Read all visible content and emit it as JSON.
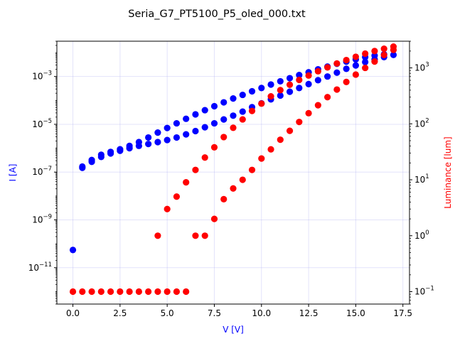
{
  "chart_data": {
    "type": "scatter",
    "title": "Seria_G7_PT5100_P5_oled_000.txt",
    "xlabel": "V [V]",
    "ylabel_left": "I [A]",
    "ylabel_right": "Luminance [lum]",
    "xlim": [
      -0.85,
      17.85
    ],
    "ylim_left": [
      3e-13,
      0.03
    ],
    "ylim_right": [
      0.06,
      3000
    ],
    "left_scale": "log",
    "right_scale": "log",
    "grid": true,
    "x_ticks": [
      {
        "v": 0.0,
        "label": "0.0"
      },
      {
        "v": 2.5,
        "label": "2.5"
      },
      {
        "v": 5.0,
        "label": "5.0"
      },
      {
        "v": 7.5,
        "label": "7.5"
      },
      {
        "v": 10.0,
        "label": "10.0"
      },
      {
        "v": 12.5,
        "label": "12.5"
      },
      {
        "v": 15.0,
        "label": "15.0"
      },
      {
        "v": 17.5,
        "label": "17.5"
      }
    ],
    "y_ticks_left": [
      {
        "v": 1e-11,
        "base": "10",
        "exp": "−11"
      },
      {
        "v": 1e-09,
        "base": "10",
        "exp": "−9"
      },
      {
        "v": 1e-07,
        "base": "10",
        "exp": "−7"
      },
      {
        "v": 1e-05,
        "base": "10",
        "exp": "−5"
      },
      {
        "v": 0.001,
        "base": "10",
        "exp": "−3"
      }
    ],
    "y_ticks_right": [
      {
        "v": 0.1,
        "base": "10",
        "exp": "−1"
      },
      {
        "v": 1,
        "base": "10",
        "exp": "0"
      },
      {
        "v": 10,
        "base": "10",
        "exp": "1"
      },
      {
        "v": 100,
        "base": "10",
        "exp": "2"
      },
      {
        "v": 1000,
        "base": "10",
        "exp": "3"
      }
    ],
    "series": [
      {
        "axis": "left",
        "color": "#0000ff",
        "points": [
          [
            0.0,
            5.5e-11
          ],
          [
            0.5,
            1.5e-07
          ],
          [
            1.0,
            2.7e-07
          ],
          [
            1.5,
            4.3e-07
          ],
          [
            2.0,
            6e-07
          ],
          [
            2.5,
            7.8e-07
          ],
          [
            3.0,
            1e-06
          ],
          [
            3.5,
            1.25e-06
          ],
          [
            4.0,
            1.5e-06
          ],
          [
            4.5,
            1.8e-06
          ],
          [
            5.0,
            2.2e-06
          ],
          [
            5.5,
            2.8e-06
          ],
          [
            6.0,
            3.8e-06
          ],
          [
            6.5,
            5.2e-06
          ],
          [
            7.0,
            7.5e-06
          ],
          [
            7.5,
            1.1e-05
          ],
          [
            8.0,
            1.6e-05
          ],
          [
            8.5,
            2.3e-05
          ],
          [
            9.0,
            3.4e-05
          ],
          [
            9.5,
            5.2e-05
          ],
          [
            10.0,
            7.5e-05
          ],
          [
            10.5,
            0.00011
          ],
          [
            11.0,
            0.00016
          ],
          [
            11.5,
            0.00023
          ],
          [
            12.0,
            0.00033
          ],
          [
            12.5,
            0.00048
          ],
          [
            13.0,
            0.0007
          ],
          [
            13.5,
            0.001
          ],
          [
            14.0,
            0.00145
          ],
          [
            14.5,
            0.0021
          ],
          [
            15.0,
            0.0029
          ],
          [
            15.5,
            0.004
          ],
          [
            16.0,
            0.0052
          ],
          [
            16.5,
            0.0065
          ],
          [
            17.0,
            0.008
          ],
          [
            16.5,
            0.0085
          ],
          [
            16.0,
            0.0075
          ],
          [
            15.5,
            0.0065
          ],
          [
            15.0,
            0.0052
          ],
          [
            14.5,
            0.0042
          ],
          [
            14.0,
            0.0034
          ],
          [
            13.5,
            0.0026
          ],
          [
            13.0,
            0.002
          ],
          [
            12.5,
            0.0015
          ],
          [
            12.0,
            0.00115
          ],
          [
            11.5,
            0.00085
          ],
          [
            11.0,
            0.00063
          ],
          [
            10.5,
            0.00046
          ],
          [
            10.0,
            0.00033
          ],
          [
            9.5,
            0.00024
          ],
          [
            9.0,
            0.00017
          ],
          [
            8.5,
            0.00012
          ],
          [
            8.0,
            8.3e-05
          ],
          [
            7.5,
            5.7e-05
          ],
          [
            7.0,
            3.9e-05
          ],
          [
            6.5,
            2.6e-05
          ],
          [
            6.0,
            1.7e-05
          ],
          [
            5.5,
            1.1e-05
          ],
          [
            5.0,
            7e-06
          ],
          [
            4.5,
            4.5e-06
          ],
          [
            4.0,
            2.8e-06
          ],
          [
            3.5,
            1.8e-06
          ],
          [
            3.0,
            1.25e-06
          ],
          [
            2.5,
            9e-07
          ],
          [
            2.0,
            7e-07
          ],
          [
            1.5,
            5.3e-07
          ],
          [
            1.0,
            3.2e-07
          ],
          [
            0.5,
            1.7e-07
          ]
        ]
      },
      {
        "axis": "right",
        "color": "#ff0000",
        "points": [
          [
            0.0,
            0.1
          ],
          [
            0.5,
            0.1
          ],
          [
            1.0,
            0.1
          ],
          [
            1.5,
            0.1
          ],
          [
            2.0,
            0.1
          ],
          [
            2.5,
            0.1
          ],
          [
            3.0,
            0.1
          ],
          [
            3.5,
            0.1
          ],
          [
            4.0,
            0.1
          ],
          [
            4.5,
            0.1
          ],
          [
            5.0,
            0.1
          ],
          [
            5.5,
            0.1
          ],
          [
            6.0,
            0.1
          ],
          [
            4.5,
            1.0
          ],
          [
            5.0,
            3.0
          ],
          [
            5.5,
            5.0
          ],
          [
            6.0,
            9.0
          ],
          [
            6.5,
            15
          ],
          [
            7.0,
            25
          ],
          [
            7.5,
            38
          ],
          [
            8.0,
            58
          ],
          [
            8.5,
            85
          ],
          [
            9.0,
            120
          ],
          [
            9.5,
            170
          ],
          [
            10.0,
            230
          ],
          [
            10.5,
            310
          ],
          [
            11.0,
            400
          ],
          [
            11.5,
            500
          ],
          [
            12.0,
            610
          ],
          [
            12.5,
            730
          ],
          [
            13.0,
            870
          ],
          [
            13.5,
            1020
          ],
          [
            14.0,
            1200
          ],
          [
            14.5,
            1380
          ],
          [
            15.0,
            1580
          ],
          [
            15.5,
            1800
          ],
          [
            16.0,
            2000
          ],
          [
            16.5,
            2200
          ],
          [
            17.0,
            2400
          ],
          [
            6.5,
            1.0
          ],
          [
            7.0,
            1.0
          ],
          [
            7.5,
            2.0
          ],
          [
            8.0,
            4.5
          ],
          [
            8.5,
            7.0
          ],
          [
            9.0,
            10
          ],
          [
            9.5,
            15
          ],
          [
            10.0,
            24
          ],
          [
            10.5,
            35
          ],
          [
            11.0,
            52
          ],
          [
            11.5,
            75
          ],
          [
            12.0,
            108
          ],
          [
            12.5,
            155
          ],
          [
            13.0,
            215
          ],
          [
            13.5,
            300
          ],
          [
            14.0,
            410
          ],
          [
            14.5,
            560
          ],
          [
            15.0,
            760
          ],
          [
            15.5,
            1000
          ],
          [
            16.0,
            1300
          ],
          [
            16.5,
            1700
          ],
          [
            17.0,
            2100
          ]
        ]
      }
    ]
  }
}
